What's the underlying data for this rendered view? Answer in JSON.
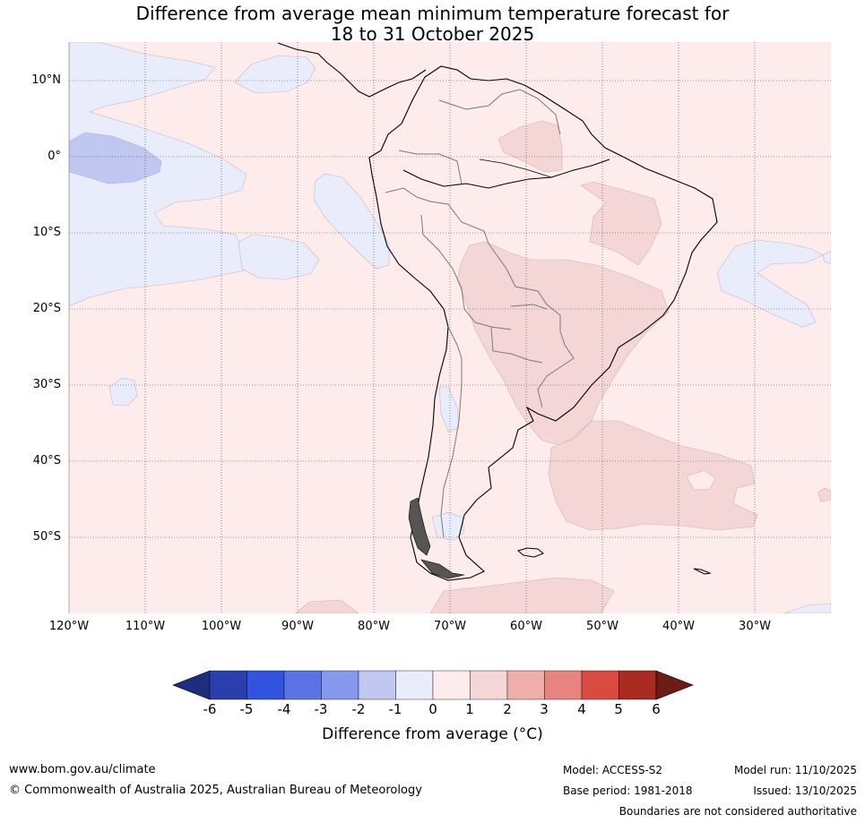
{
  "title": {
    "line1": "Difference from average mean minimum temperature forecast for",
    "line2": "18 to 31 October 2025"
  },
  "map": {
    "lat_labels": [
      "10°N",
      "0°",
      "10°S",
      "20°S",
      "30°S",
      "40°S",
      "50°S"
    ],
    "lon_labels": [
      "120°W",
      "110°W",
      "100°W",
      "90°W",
      "80°W",
      "70°W",
      "60°W",
      "50°W",
      "40°W",
      "30°W"
    ],
    "colors": {
      "anomaly_0_to_1": "#fdeceb",
      "anomaly_1_to_2": "#f5d6d6",
      "anomaly_m1_to_0": "#e8ecfb",
      "anomaly_m2_to_m1": "#c0c8f2"
    }
  },
  "colorbar": {
    "ticks": [
      "-6",
      "-5",
      "-4",
      "-3",
      "-2",
      "-1",
      "0",
      "1",
      "2",
      "3",
      "4",
      "5",
      "6"
    ],
    "colors": [
      "#1f2d7e",
      "#293fae",
      "#3153e0",
      "#5b72e6",
      "#8799ee",
      "#c0c8f2",
      "#e8ecfb",
      "#fdeceb",
      "#f5d6d6",
      "#eeaeaa",
      "#e8847f",
      "#db4a40",
      "#aa2a22",
      "#6e1b17"
    ],
    "title": "Difference from average (°C)"
  },
  "footer": {
    "website": "www.bom.gov.au/climate",
    "copyright": "© Commonwealth of Australia 2025, Australian Bureau of Meteorology",
    "model": "Model: ACCESS-S2",
    "base_period": "Base period: 1981-2018",
    "model_run": "Model run: 11/10/2025",
    "issued": "Issued: 13/10/2025",
    "disclaimer": "Boundaries are not considered authoritative"
  }
}
